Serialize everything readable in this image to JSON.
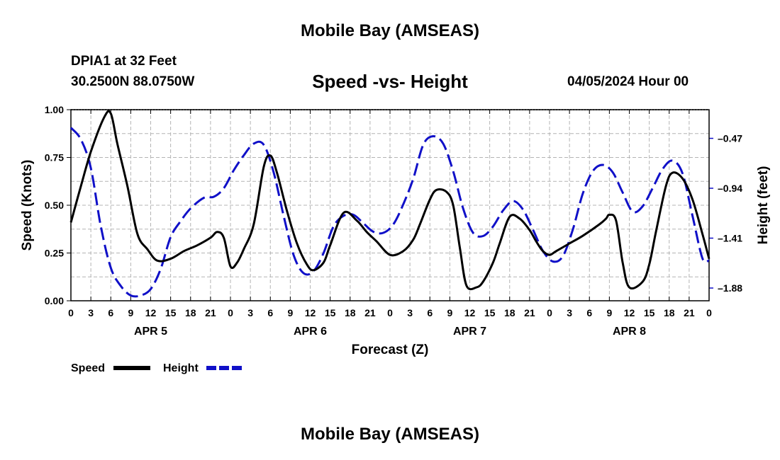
{
  "header": {
    "main_title": "Mobile Bay (AMSEAS)",
    "station": "DPIA1 at 32 Feet",
    "coords": "30.2500N  88.0750W",
    "timestamp": "04/05/2024 Hour 00",
    "footer_title": "Mobile Bay (AMSEAS)"
  },
  "chart_data": {
    "type": "line",
    "title": "Speed -vs- Height",
    "xlabel": "Forecast (Z)",
    "ylabel": "Speed (Knots)",
    "y2label": "Height (feet)",
    "x_hours_range": [
      0,
      96
    ],
    "x_tick_step_hours": 3,
    "x_tick_labels": [
      "0",
      "3",
      "6",
      "9",
      "12",
      "15",
      "18",
      "21",
      "0",
      "3",
      "6",
      "9",
      "12",
      "15",
      "18",
      "21",
      "0",
      "3",
      "6",
      "9",
      "12",
      "15",
      "18",
      "21",
      "0",
      "3",
      "6",
      "9",
      "12",
      "15",
      "18",
      "21",
      "0"
    ],
    "day_labels": [
      {
        "label": "APR 5",
        "hour": 12
      },
      {
        "label": "APR 6",
        "hour": 36
      },
      {
        "label": "APR 7",
        "hour": 60
      },
      {
        "label": "APR 8",
        "hour": 84
      }
    ],
    "ylim": [
      0,
      1
    ],
    "y_ticks": [
      0,
      0.25,
      0.5,
      0.75,
      1.0
    ],
    "y_tick_labels": [
      "0.00",
      "0.25",
      "0.50",
      "0.75",
      "1.00"
    ],
    "y2lim": [
      -2.0,
      -0.2
    ],
    "y2_ticks": [
      -0.47,
      -0.94,
      -1.41,
      -1.88
    ],
    "y2_tick_labels": [
      "–0.47",
      "–0.94",
      "–1.41",
      "–1.88"
    ],
    "grid": true,
    "legend": [
      {
        "name": "Speed",
        "color": "#000000",
        "style": "solid"
      },
      {
        "name": "Height",
        "color": "#1010c8",
        "style": "dashed"
      }
    ],
    "series": [
      {
        "name": "Speed",
        "axis": "left",
        "color": "#000000",
        "x": [
          0,
          1.5,
          3,
          5,
          6,
          7,
          8.5,
          10,
          11.5,
          13,
          15,
          17,
          19,
          21,
          22,
          23,
          24,
          25,
          26,
          27.5,
          29,
          30,
          31,
          32.5,
          34,
          35.5,
          36.5,
          38,
          39,
          41,
          43,
          44.5,
          46,
          48,
          50,
          51.5,
          52.5,
          54,
          55,
          56.5,
          57.5,
          58.5,
          59.5,
          61,
          62,
          63.5,
          64.5,
          66,
          67.5,
          69,
          70,
          71,
          72,
          73,
          75,
          77,
          79.5,
          80.5,
          81,
          82,
          83,
          84,
          86,
          87,
          88,
          89.5,
          90.5,
          92,
          93.5,
          95,
          96
        ],
        "y": [
          0.41,
          0.6,
          0.78,
          0.96,
          0.98,
          0.82,
          0.6,
          0.35,
          0.27,
          0.21,
          0.22,
          0.26,
          0.29,
          0.33,
          0.36,
          0.33,
          0.18,
          0.2,
          0.27,
          0.4,
          0.7,
          0.76,
          0.67,
          0.47,
          0.3,
          0.19,
          0.16,
          0.2,
          0.29,
          0.46,
          0.42,
          0.36,
          0.31,
          0.24,
          0.26,
          0.32,
          0.4,
          0.53,
          0.58,
          0.57,
          0.5,
          0.28,
          0.08,
          0.07,
          0.1,
          0.2,
          0.3,
          0.44,
          0.43,
          0.37,
          0.31,
          0.26,
          0.24,
          0.26,
          0.3,
          0.34,
          0.4,
          0.43,
          0.45,
          0.42,
          0.2,
          0.07,
          0.1,
          0.19,
          0.36,
          0.6,
          0.67,
          0.64,
          0.53,
          0.35,
          0.22
        ]
      },
      {
        "name": "Height",
        "axis": "right",
        "color": "#1010c8",
        "x": [
          0,
          1.5,
          3,
          4.5,
          6,
          7.5,
          9,
          10.5,
          12,
          13.5,
          15,
          16.5,
          18,
          20,
          21.5,
          23,
          24.5,
          26,
          27.5,
          29,
          30.5,
          32,
          33.5,
          35,
          36.5,
          38,
          39.5,
          41,
          42.5,
          44,
          45.5,
          47,
          48.5,
          50,
          51.5,
          53,
          54.5,
          56,
          57.5,
          59,
          60.5,
          62,
          63.5,
          65,
          66.5,
          68,
          69.5,
          71,
          72.5,
          74,
          75.5,
          77,
          78.5,
          80,
          81.5,
          83,
          84.5,
          86,
          87.5,
          89,
          90.5,
          92,
          93.5,
          95,
          96
        ],
        "y": [
          -0.37,
          -0.48,
          -0.75,
          -1.3,
          -1.69,
          -1.86,
          -1.95,
          -1.95,
          -1.89,
          -1.7,
          -1.4,
          -1.25,
          -1.13,
          -1.03,
          -1.02,
          -0.94,
          -0.77,
          -0.63,
          -0.52,
          -0.53,
          -0.79,
          -1.2,
          -1.57,
          -1.74,
          -1.72,
          -1.55,
          -1.3,
          -1.2,
          -1.19,
          -1.27,
          -1.35,
          -1.36,
          -1.28,
          -1.09,
          -0.85,
          -0.53,
          -0.45,
          -0.52,
          -0.78,
          -1.13,
          -1.36,
          -1.39,
          -1.3,
          -1.15,
          -1.06,
          -1.14,
          -1.33,
          -1.53,
          -1.63,
          -1.58,
          -1.33,
          -0.99,
          -0.78,
          -0.72,
          -0.79,
          -0.98,
          -1.16,
          -1.11,
          -0.94,
          -0.76,
          -0.68,
          -0.8,
          -1.2,
          -1.6,
          -1.62
        ]
      }
    ]
  }
}
